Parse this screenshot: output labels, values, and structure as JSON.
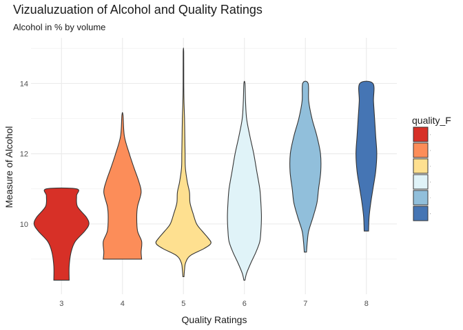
{
  "chart_data": {
    "type": "violin",
    "title": "Vizualuzuation of Alcohol and Quality Ratings",
    "subtitle": "Alcohol in % by volume",
    "xlabel": "Quality Ratings",
    "ylabel": "Measure of Alcohol",
    "categories": [
      "3",
      "4",
      "5",
      "6",
      "7",
      "8"
    ],
    "ylim": [
      8.0,
      15.3
    ],
    "yticks": [
      10,
      12,
      14
    ],
    "grid": true,
    "legend": {
      "title": "quality_F",
      "placement": "right",
      "entries": [
        "3",
        "4",
        "5",
        "6",
        "7",
        "8"
      ]
    },
    "colors": [
      "#d73027",
      "#fc8d59",
      "#fee090",
      "#e0f3f8",
      "#91bfdb",
      "#4575b4"
    ],
    "violins": [
      {
        "category": "3",
        "min": 8.4,
        "max": 11.0,
        "profile": [
          [
            8.4,
            0.28
          ],
          [
            8.8,
            0.28
          ],
          [
            9.2,
            0.35
          ],
          [
            9.5,
            0.5
          ],
          [
            9.8,
            0.85
          ],
          [
            10.0,
            1.0
          ],
          [
            10.2,
            0.9
          ],
          [
            10.5,
            0.58
          ],
          [
            10.8,
            0.55
          ],
          [
            11.0,
            0.55
          ]
        ]
      },
      {
        "category": "4",
        "min": 9.0,
        "max": 13.1,
        "profile": [
          [
            9.0,
            0.7
          ],
          [
            9.2,
            0.68
          ],
          [
            9.5,
            0.7
          ],
          [
            9.8,
            0.55
          ],
          [
            10.2,
            0.52
          ],
          [
            10.5,
            0.55
          ],
          [
            10.9,
            0.68
          ],
          [
            11.2,
            0.6
          ],
          [
            11.6,
            0.42
          ],
          [
            12.0,
            0.25
          ],
          [
            12.5,
            0.07
          ],
          [
            13.1,
            0.02
          ]
        ]
      },
      {
        "category": "5",
        "min": 8.5,
        "max": 14.9,
        "profile": [
          [
            8.5,
            0.02
          ],
          [
            8.7,
            0.04
          ],
          [
            8.9,
            0.08
          ],
          [
            9.1,
            0.25
          ],
          [
            9.3,
            0.75
          ],
          [
            9.45,
            1.0
          ],
          [
            9.6,
            0.9
          ],
          [
            9.8,
            0.68
          ],
          [
            10.0,
            0.48
          ],
          [
            10.3,
            0.35
          ],
          [
            10.6,
            0.24
          ],
          [
            10.9,
            0.22
          ],
          [
            11.2,
            0.14
          ],
          [
            11.6,
            0.07
          ],
          [
            12.0,
            0.06
          ],
          [
            12.5,
            0.05
          ],
          [
            13.0,
            0.04
          ],
          [
            13.5,
            0.02
          ],
          [
            14.0,
            0.012
          ],
          [
            14.9,
            0.01
          ]
        ]
      },
      {
        "category": "6",
        "min": 8.4,
        "max": 14.0,
        "profile": [
          [
            8.4,
            0.02
          ],
          [
            8.6,
            0.08
          ],
          [
            8.9,
            0.24
          ],
          [
            9.2,
            0.42
          ],
          [
            9.5,
            0.56
          ],
          [
            9.8,
            0.6
          ],
          [
            10.2,
            0.62
          ],
          [
            10.6,
            0.6
          ],
          [
            11.0,
            0.56
          ],
          [
            11.5,
            0.45
          ],
          [
            12.0,
            0.34
          ],
          [
            12.5,
            0.2
          ],
          [
            13.0,
            0.08
          ],
          [
            13.5,
            0.04
          ],
          [
            14.0,
            0.02
          ]
        ]
      },
      {
        "category": "7",
        "min": 9.2,
        "max": 14.0,
        "profile": [
          [
            9.2,
            0.04
          ],
          [
            9.5,
            0.07
          ],
          [
            9.8,
            0.12
          ],
          [
            10.2,
            0.28
          ],
          [
            10.6,
            0.42
          ],
          [
            11.0,
            0.48
          ],
          [
            11.5,
            0.56
          ],
          [
            12.0,
            0.55
          ],
          [
            12.5,
            0.42
          ],
          [
            13.0,
            0.24
          ],
          [
            13.5,
            0.12
          ],
          [
            14.0,
            0.1
          ]
        ]
      },
      {
        "category": "8",
        "min": 9.8,
        "max": 14.0,
        "profile": [
          [
            9.8,
            0.08
          ],
          [
            10.2,
            0.1
          ],
          [
            10.6,
            0.16
          ],
          [
            11.0,
            0.24
          ],
          [
            11.5,
            0.34
          ],
          [
            12.0,
            0.38
          ],
          [
            12.5,
            0.34
          ],
          [
            13.0,
            0.3
          ],
          [
            13.5,
            0.26
          ],
          [
            14.0,
            0.24
          ]
        ]
      }
    ]
  }
}
